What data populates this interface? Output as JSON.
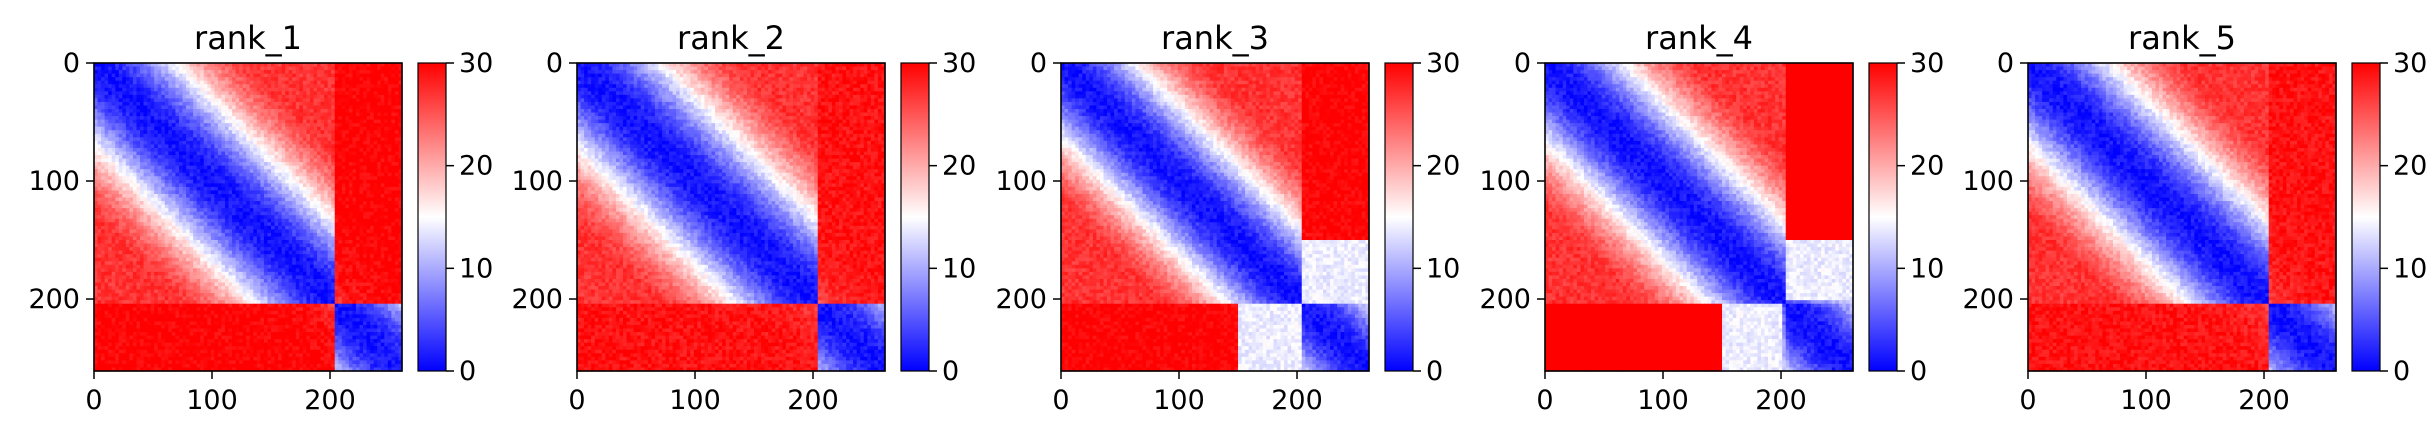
{
  "chart_data": [
    {
      "type": "heatmap",
      "title": "rank_1",
      "xlabel": "",
      "ylabel": "",
      "xlim": [
        0,
        261
      ],
      "ylim": [
        261,
        0
      ],
      "xticks": [
        0,
        100,
        200
      ],
      "yticks": [
        0,
        100,
        200
      ],
      "colorbar": {
        "range": [
          0,
          30
        ],
        "ticks": [
          0,
          10,
          20,
          30
        ],
        "colormap": "bwr",
        "colors": [
          "#0000ff",
          "#ffffff",
          "#ff0000"
        ]
      },
      "matrix_size": 261,
      "structure": {
        "diagonal_band_width": 60,
        "low_block": null,
        "stripe_row": 205,
        "stripe_value": 30
      }
    },
    {
      "type": "heatmap",
      "title": "rank_2",
      "xlabel": "",
      "ylabel": "",
      "xlim": [
        0,
        261
      ],
      "ylim": [
        261,
        0
      ],
      "xticks": [
        0,
        100,
        200
      ],
      "yticks": [
        0,
        100,
        200
      ],
      "colorbar": {
        "range": [
          0,
          30
        ],
        "ticks": [
          0,
          10,
          20,
          30
        ],
        "colormap": "bwr",
        "colors": [
          "#0000ff",
          "#ffffff",
          "#ff0000"
        ]
      },
      "matrix_size": 261,
      "structure": {
        "diagonal_band_width": 62,
        "low_block": null,
        "stripe_row": 205,
        "stripe_value": 29
      }
    },
    {
      "type": "heatmap",
      "title": "rank_3",
      "xlabel": "",
      "ylabel": "",
      "xlim": [
        0,
        261
      ],
      "ylim": [
        261,
        0
      ],
      "xticks": [
        0,
        100,
        200
      ],
      "yticks": [
        0,
        100,
        200
      ],
      "colorbar": {
        "range": [
          0,
          30
        ],
        "ticks": [
          0,
          10,
          20,
          30
        ],
        "colormap": "bwr",
        "colors": [
          "#0000ff",
          "#ffffff",
          "#ff0000"
        ]
      },
      "matrix_size": 261,
      "structure": {
        "diagonal_band_width": 55,
        "low_block": [
          205,
          261
        ],
        "stripe_row": 205,
        "stripe_value": 30
      }
    },
    {
      "type": "heatmap",
      "title": "rank_4",
      "xlabel": "",
      "ylabel": "",
      "xlim": [
        0,
        261
      ],
      "ylim": [
        261,
        0
      ],
      "xticks": [
        0,
        100,
        200
      ],
      "yticks": [
        0,
        100,
        200
      ],
      "colorbar": {
        "range": [
          0,
          30
        ],
        "ticks": [
          0,
          10,
          20,
          30
        ],
        "colormap": "bwr",
        "colors": [
          "#0000ff",
          "#ffffff",
          "#ff0000"
        ]
      },
      "matrix_size": 261,
      "structure": {
        "diagonal_band_width": 58,
        "low_block": [
          200,
          261
        ],
        "stripe_row": 205,
        "stripe_value": 32
      }
    },
    {
      "type": "heatmap",
      "title": "rank_5",
      "xlabel": "",
      "ylabel": "",
      "xlim": [
        0,
        261
      ],
      "ylim": [
        261,
        0
      ],
      "xticks": [
        0,
        100,
        200
      ],
      "yticks": [
        0,
        100,
        200
      ],
      "colorbar": {
        "range": [
          0,
          30
        ],
        "ticks": [
          0,
          10,
          20,
          30
        ],
        "colormap": "bwr",
        "colors": [
          "#0000ff",
          "#ffffff",
          "#ff0000"
        ]
      },
      "matrix_size": 261,
      "structure": {
        "diagonal_band_width": 60,
        "low_block": null,
        "stripe_row": 205,
        "stripe_value": 29
      }
    }
  ]
}
